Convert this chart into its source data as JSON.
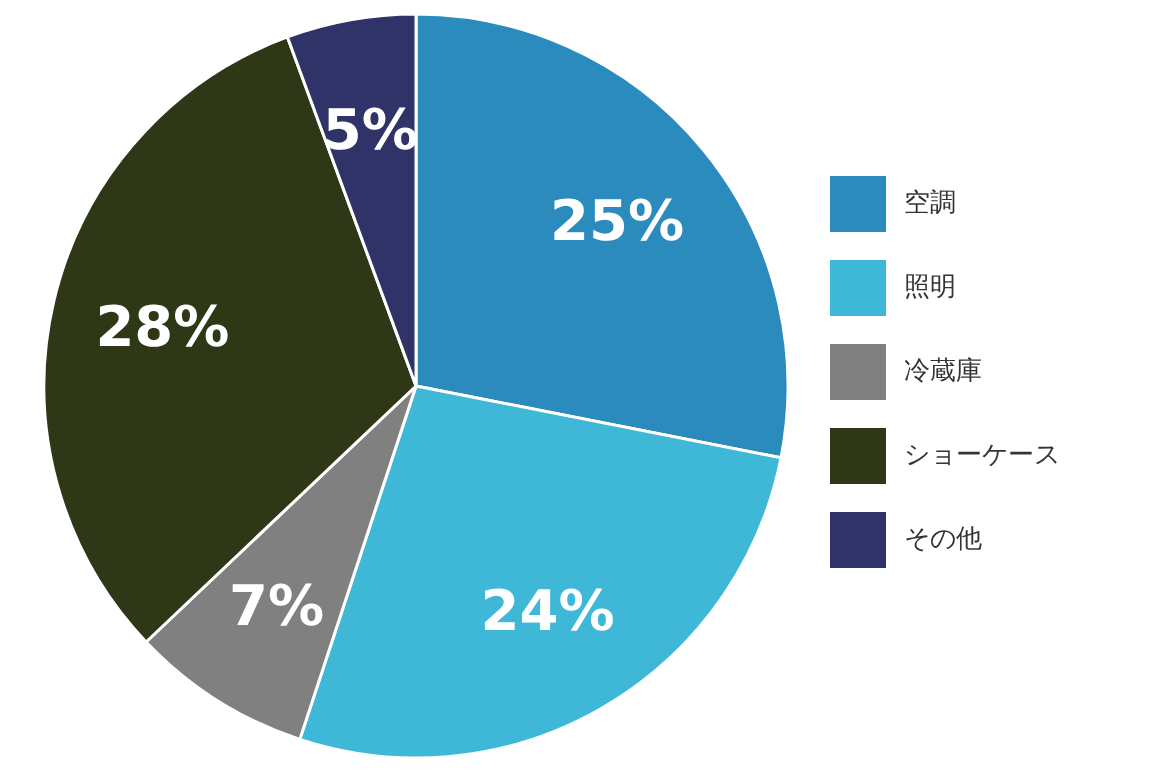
{
  "chart_data": {
    "type": "pie",
    "categories": [
      "空調",
      "照明",
      "冷蔵庫",
      "ショーケース",
      "その他"
    ],
    "values": [
      25,
      24,
      7,
      28,
      5
    ],
    "colors": [
      "#2c8bbd",
      "#3fb8d8",
      "#808080",
      "#2e3716",
      "#2f3368"
    ],
    "value_labels": [
      "25%",
      "24%",
      "7%",
      "28%",
      "5%"
    ],
    "legend": "right"
  }
}
